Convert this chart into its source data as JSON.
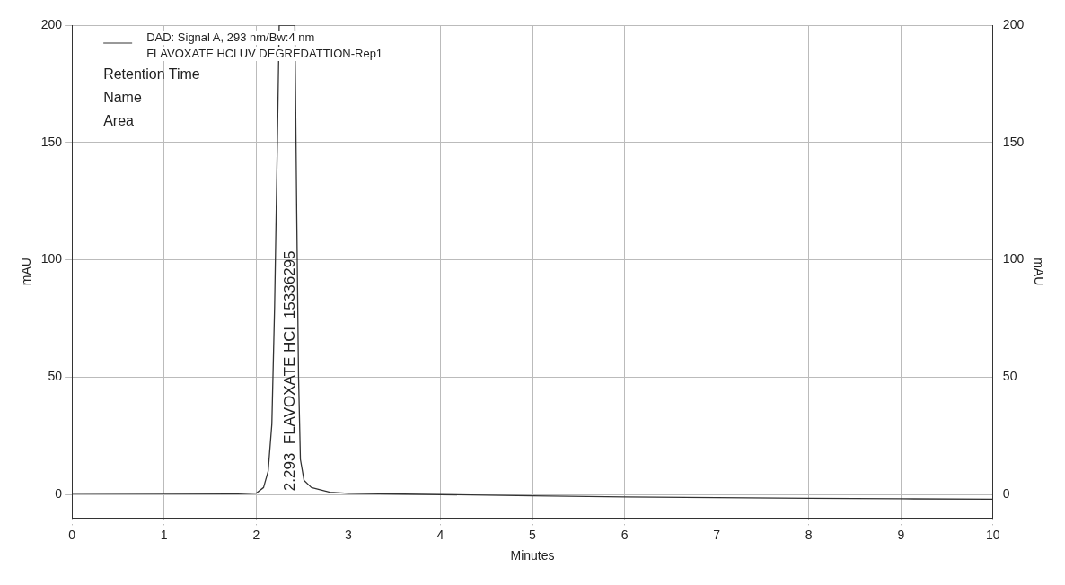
{
  "chart_data": {
    "type": "line",
    "xlabel": "Minutes",
    "ylabel": "mAU",
    "y2label": "mAU",
    "x": [
      0,
      1,
      1.8,
      2.0,
      2.08,
      2.13,
      2.17,
      2.2,
      2.23,
      2.25,
      2.42,
      2.44,
      2.46,
      2.48,
      2.52,
      2.6,
      2.8,
      3.0,
      4,
      5,
      6,
      7,
      8,
      9,
      10
    ],
    "series": [
      {
        "name": "DAD: Signal A, 293 nm/Bw:4 nm",
        "color": "#333333",
        "values": [
          0.5,
          0.4,
          0.3,
          0.6,
          3,
          10,
          30,
          80,
          150,
          200,
          200,
          120,
          50,
          15,
          6,
          3,
          1,
          0.5,
          0,
          -0.5,
          -1,
          -1.3,
          -1.6,
          -1.8,
          -2
        ]
      }
    ],
    "xlim": [
      0,
      10
    ],
    "xticks": [
      0,
      1,
      2,
      3,
      4,
      5,
      6,
      7,
      8,
      9,
      10
    ],
    "ylim": [
      -10,
      200
    ],
    "yticks": [
      0,
      50,
      100,
      150,
      200
    ],
    "y2lim": [
      -10,
      200
    ],
    "y2ticks": [
      0,
      50,
      100,
      150,
      200
    ],
    "grid": true,
    "legend": "top left",
    "line_style": "solid",
    "marker": "none",
    "annotations": [
      "FLAVOXATE HCl UV DEGREDATTION-Rep1",
      "Retention Time",
      "Name",
      "Area",
      "2.293  FLAVOXATE HCl  15336295"
    ]
  }
}
